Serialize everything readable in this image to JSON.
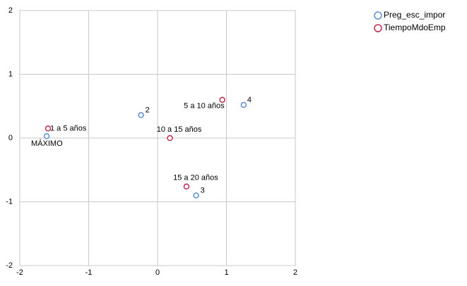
{
  "chart_data": {
    "type": "scatter",
    "xlim": [
      -2,
      2
    ],
    "ylim": [
      -2,
      2
    ],
    "xticks": [
      -2,
      -1,
      0,
      1,
      2
    ],
    "yticks": [
      -2,
      -1,
      0,
      1,
      2
    ],
    "grid": true,
    "legend": "top-right",
    "series": [
      {
        "name": "Preg_esc_impor",
        "color": "#5b8fd6",
        "x": [
          -1.61,
          -0.24,
          1.25,
          0.56
        ],
        "values": [
          0.03,
          0.36,
          0.52,
          -0.9
        ],
        "labels": [
          "MÁXIMO",
          "2",
          "4",
          "3"
        ]
      },
      {
        "name": "TiempoMdoEmp",
        "color": "#c8294a",
        "x": [
          -1.59,
          0.18,
          0.94,
          0.42
        ],
        "values": [
          0.15,
          0.0,
          0.6,
          -0.76
        ],
        "labels": [
          "1 a 5 años",
          "10 a 15 años",
          "5 a 10 años",
          "15 a 20 años"
        ]
      }
    ]
  }
}
